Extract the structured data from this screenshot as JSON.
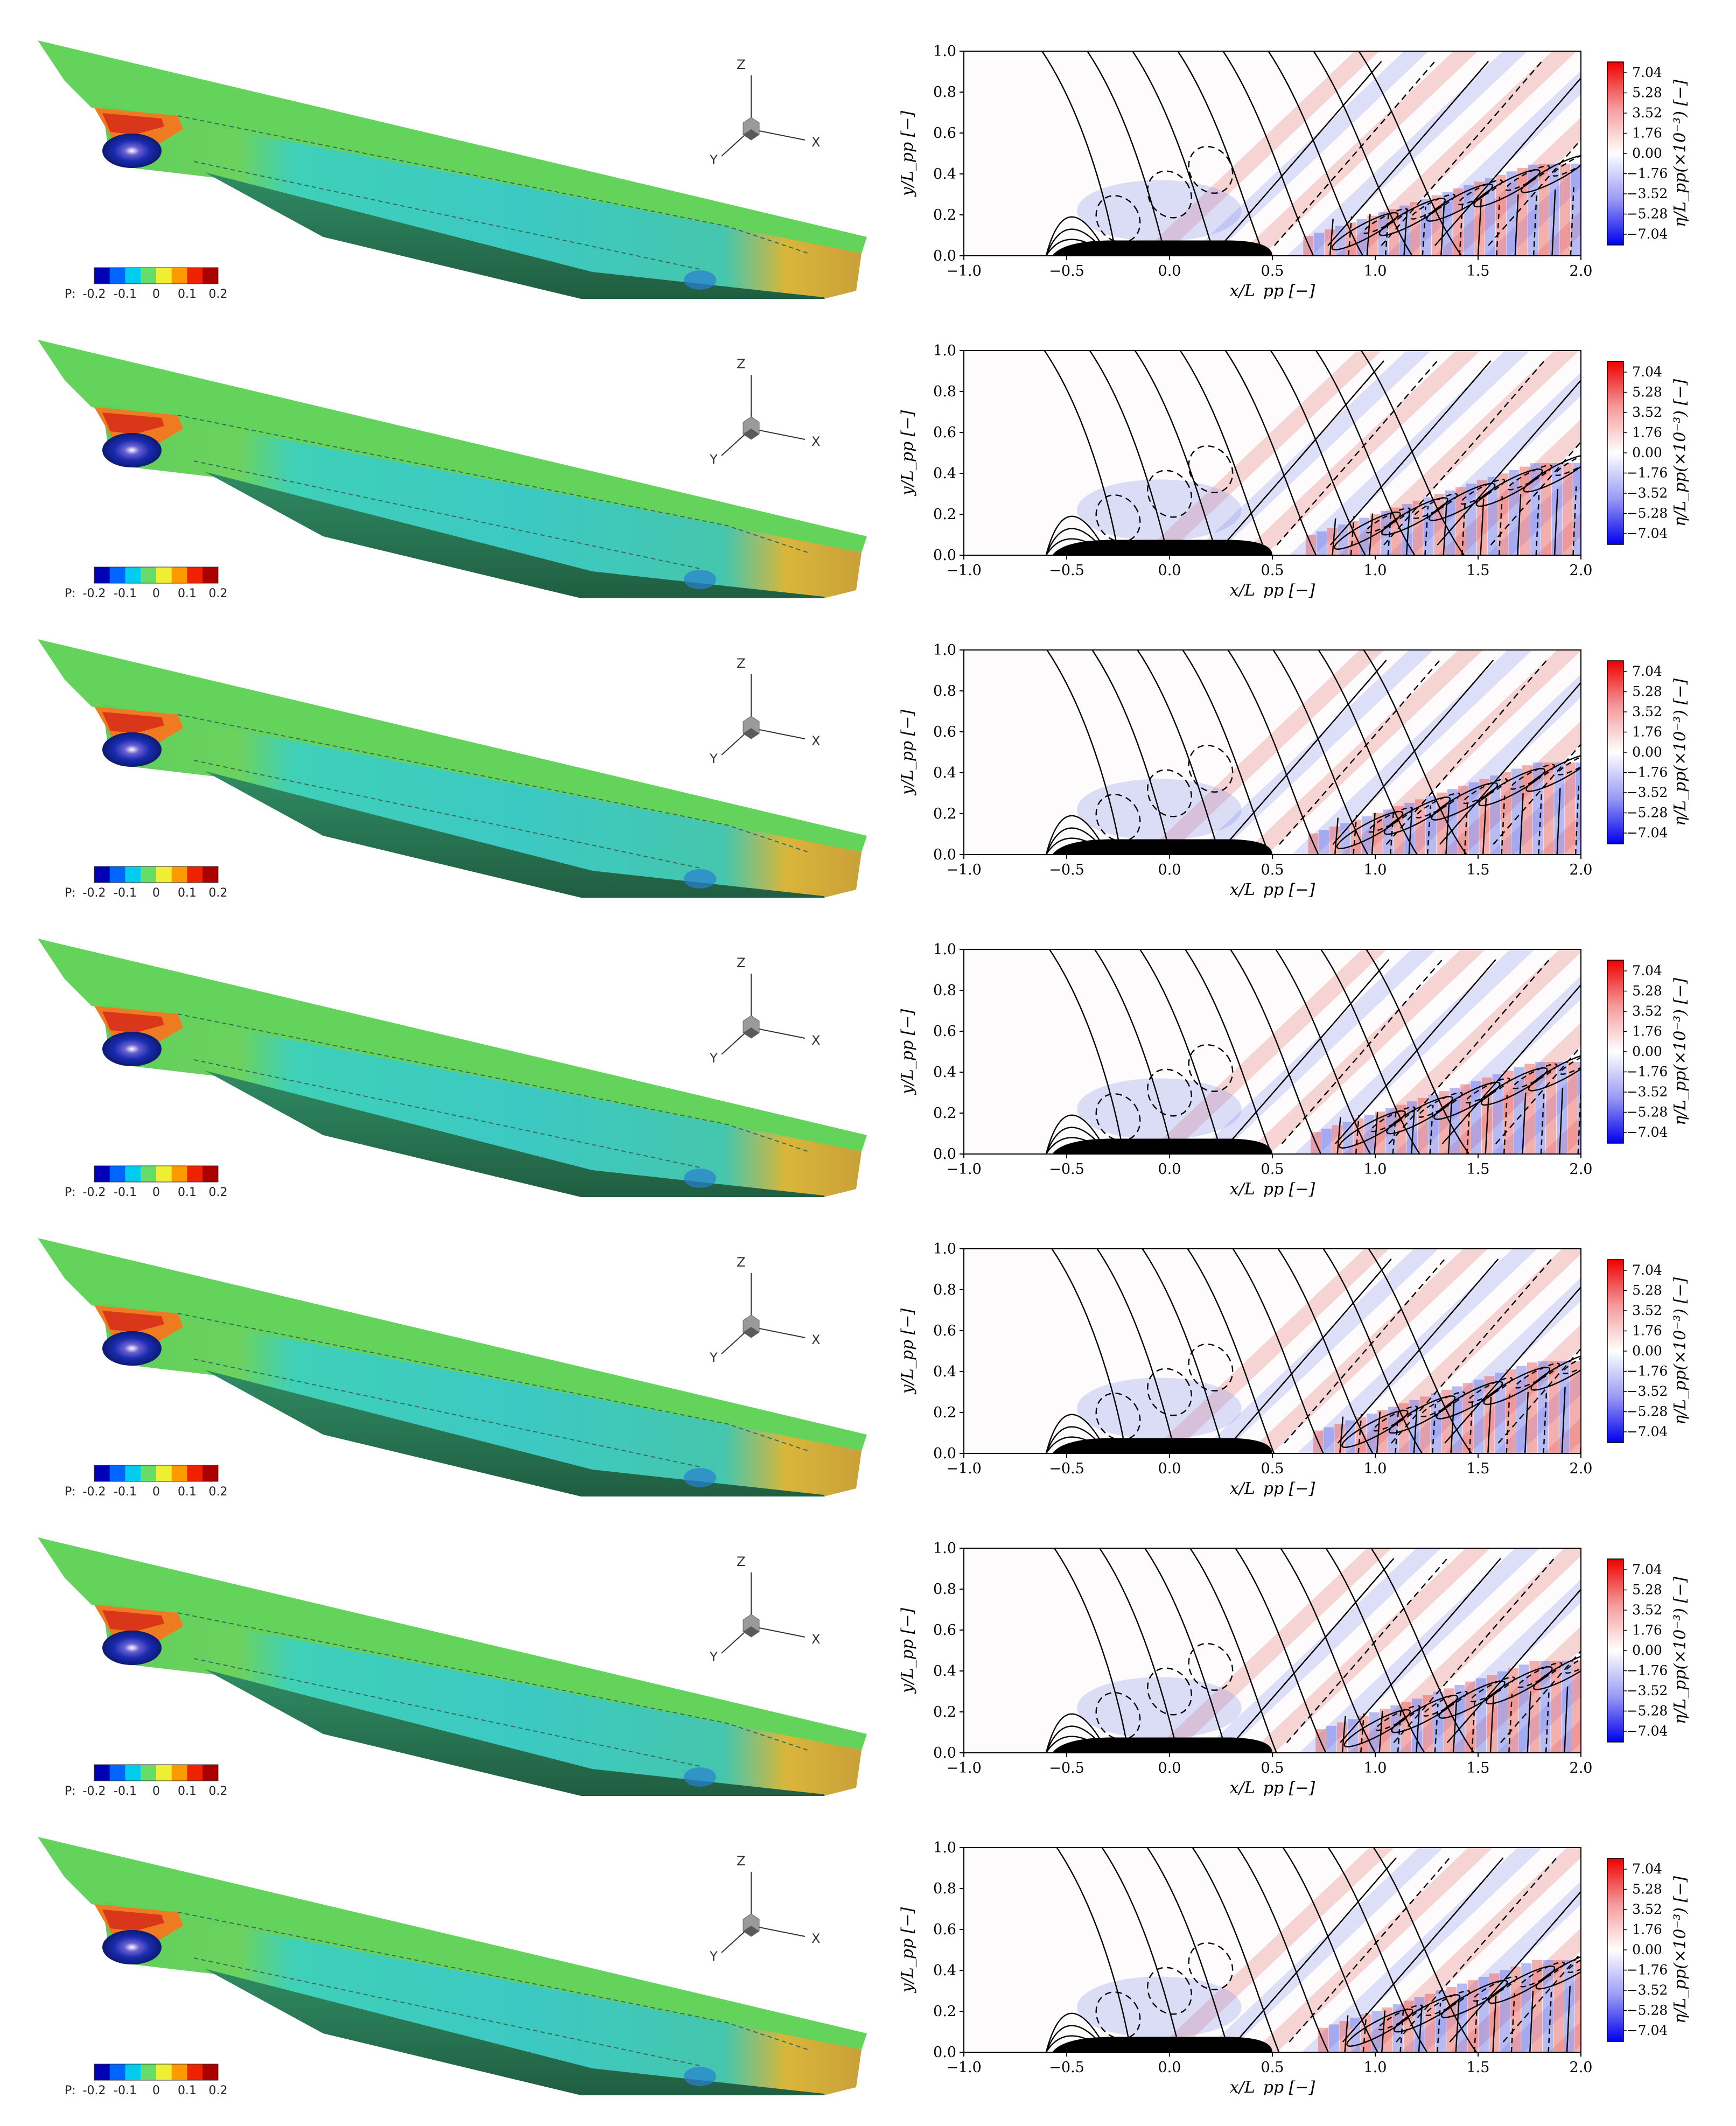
{
  "hull_legend": {
    "label": "P:",
    "ticks": [
      "-0.2",
      "-0.1",
      "0",
      "0.1",
      "0.2"
    ],
    "colors": [
      "#0000b4",
      "#0066ff",
      "#00ccee",
      "#66dd66",
      "#eeee33",
      "#ff9900",
      "#ee2200",
      "#aa0000"
    ]
  },
  "triad": {
    "z": "Z",
    "x": "X",
    "y": "Y"
  },
  "chart_data": [
    {
      "type": "heatmap",
      "panel": 1,
      "xlabel": "x/L_pp [−]",
      "ylabel": "y/L_pp [−]",
      "colorbar_label": "η/L_pp(×10⁻³) [−]",
      "xlim": [
        -1.0,
        2.0
      ],
      "ylim": [
        0.0,
        1.0
      ],
      "xticks": [
        "−1.0",
        "−0.5",
        "0.0",
        "0.5",
        "1.0",
        "1.5",
        "2.0"
      ],
      "yticks": [
        "0.0",
        "0.2",
        "0.4",
        "0.6",
        "0.8",
        "1.0"
      ],
      "colorbar_ticks": [
        "7.04",
        "5.28",
        "3.52",
        "1.76",
        "0.00",
        "−1.76",
        "−3.52",
        "−5.28",
        "−7.04"
      ],
      "colorbar_range": [
        -7.04,
        7.04
      ],
      "hull_extent_x": [
        -0.57,
        0.5
      ]
    },
    {
      "type": "heatmap",
      "panel": 2,
      "xlabel": "x/L_pp [−]",
      "ylabel": "y/L_pp [−]",
      "colorbar_label": "η/L_pp(×10⁻³) [−]",
      "xlim": [
        -1.0,
        2.0
      ],
      "ylim": [
        0.0,
        1.0
      ],
      "xticks": [
        "−1.0",
        "−0.5",
        "0.0",
        "0.5",
        "1.0",
        "1.5",
        "2.0"
      ],
      "yticks": [
        "0.0",
        "0.2",
        "0.4",
        "0.6",
        "0.8",
        "1.0"
      ],
      "colorbar_ticks": [
        "7.04",
        "5.28",
        "3.52",
        "1.76",
        "0.00",
        "−1.76",
        "−3.52",
        "−5.28",
        "−7.04"
      ],
      "colorbar_range": [
        -7.04,
        7.04
      ],
      "hull_extent_x": [
        -0.57,
        0.5
      ]
    },
    {
      "type": "heatmap",
      "panel": 3,
      "xlabel": "x/L_pp [−]",
      "ylabel": "y/L_pp [−]",
      "colorbar_label": "η/L_pp(×10⁻³) [−]",
      "xlim": [
        -1.0,
        2.0
      ],
      "ylim": [
        0.0,
        1.0
      ],
      "xticks": [
        "−1.0",
        "−0.5",
        "0.0",
        "0.5",
        "1.0",
        "1.5",
        "2.0"
      ],
      "yticks": [
        "0.0",
        "0.2",
        "0.4",
        "0.6",
        "0.8",
        "1.0"
      ],
      "colorbar_ticks": [
        "7.04",
        "5.28",
        "3.52",
        "1.76",
        "0.00",
        "−1.76",
        "−3.52",
        "−5.28",
        "−7.04"
      ],
      "colorbar_range": [
        -7.04,
        7.04
      ],
      "hull_extent_x": [
        -0.57,
        0.5
      ]
    },
    {
      "type": "heatmap",
      "panel": 4,
      "xlabel": "x/L_pp [−]",
      "ylabel": "y/L_pp [−]",
      "colorbar_label": "η/L_pp(×10⁻³) [−]",
      "xlim": [
        -1.0,
        2.0
      ],
      "ylim": [
        0.0,
        1.0
      ],
      "xticks": [
        "−1.0",
        "−0.5",
        "0.0",
        "0.5",
        "1.0",
        "1.5",
        "2.0"
      ],
      "yticks": [
        "0.0",
        "0.2",
        "0.4",
        "0.6",
        "0.8",
        "1.0"
      ],
      "colorbar_ticks": [
        "7.04",
        "5.28",
        "3.52",
        "1.76",
        "0.00",
        "−1.76",
        "−3.52",
        "−5.28",
        "−7.04"
      ],
      "colorbar_range": [
        -7.04,
        7.04
      ],
      "hull_extent_x": [
        -0.57,
        0.5
      ]
    },
    {
      "type": "heatmap",
      "panel": 5,
      "xlabel": "x/L_pp [−]",
      "ylabel": "y/L_pp [−]",
      "colorbar_label": "η/L_pp(×10⁻³) [−]",
      "xlim": [
        -1.0,
        2.0
      ],
      "ylim": [
        0.0,
        1.0
      ],
      "xticks": [
        "−1.0",
        "−0.5",
        "0.0",
        "0.5",
        "1.0",
        "1.5",
        "2.0"
      ],
      "yticks": [
        "0.0",
        "0.2",
        "0.4",
        "0.6",
        "0.8",
        "1.0"
      ],
      "colorbar_ticks": [
        "7.04",
        "5.28",
        "3.52",
        "1.76",
        "0.00",
        "−1.76",
        "−3.52",
        "−5.28",
        "−7.04"
      ],
      "colorbar_range": [
        -7.04,
        7.04
      ],
      "hull_extent_x": [
        -0.57,
        0.5
      ]
    },
    {
      "type": "heatmap",
      "panel": 6,
      "xlabel": "x/L_pp [−]",
      "ylabel": "y/L_pp [−]",
      "colorbar_label": "η/L_pp(×10⁻³) [−]",
      "xlim": [
        -1.0,
        2.0
      ],
      "ylim": [
        0.0,
        1.0
      ],
      "xticks": [
        "−1.0",
        "−0.5",
        "0.0",
        "0.5",
        "1.0",
        "1.5",
        "2.0"
      ],
      "yticks": [
        "0.0",
        "0.2",
        "0.4",
        "0.6",
        "0.8",
        "1.0"
      ],
      "colorbar_ticks": [
        "7.04",
        "5.28",
        "3.52",
        "1.76",
        "0.00",
        "−1.76",
        "−3.52",
        "−5.28",
        "−7.04"
      ],
      "colorbar_range": [
        -7.04,
        7.04
      ],
      "hull_extent_x": [
        -0.57,
        0.5
      ]
    },
    {
      "type": "heatmap",
      "panel": 7,
      "xlabel": "x/L_pp [−]",
      "ylabel": "y/L_pp [−]",
      "colorbar_label": "η/L_pp(×10⁻³) [−]",
      "xlim": [
        -1.0,
        2.0
      ],
      "ylim": [
        0.0,
        1.0
      ],
      "xticks": [
        "−1.0",
        "−0.5",
        "0.0",
        "0.5",
        "1.0",
        "1.5",
        "2.0"
      ],
      "yticks": [
        "0.0",
        "0.2",
        "0.4",
        "0.6",
        "0.8",
        "1.0"
      ],
      "colorbar_ticks": [
        "7.04",
        "5.28",
        "3.52",
        "1.76",
        "0.00",
        "−1.76",
        "−3.52",
        "−5.28",
        "−7.04"
      ],
      "colorbar_range": [
        -7.04,
        7.04
      ],
      "hull_extent_x": [
        -0.57,
        0.5
      ]
    }
  ]
}
